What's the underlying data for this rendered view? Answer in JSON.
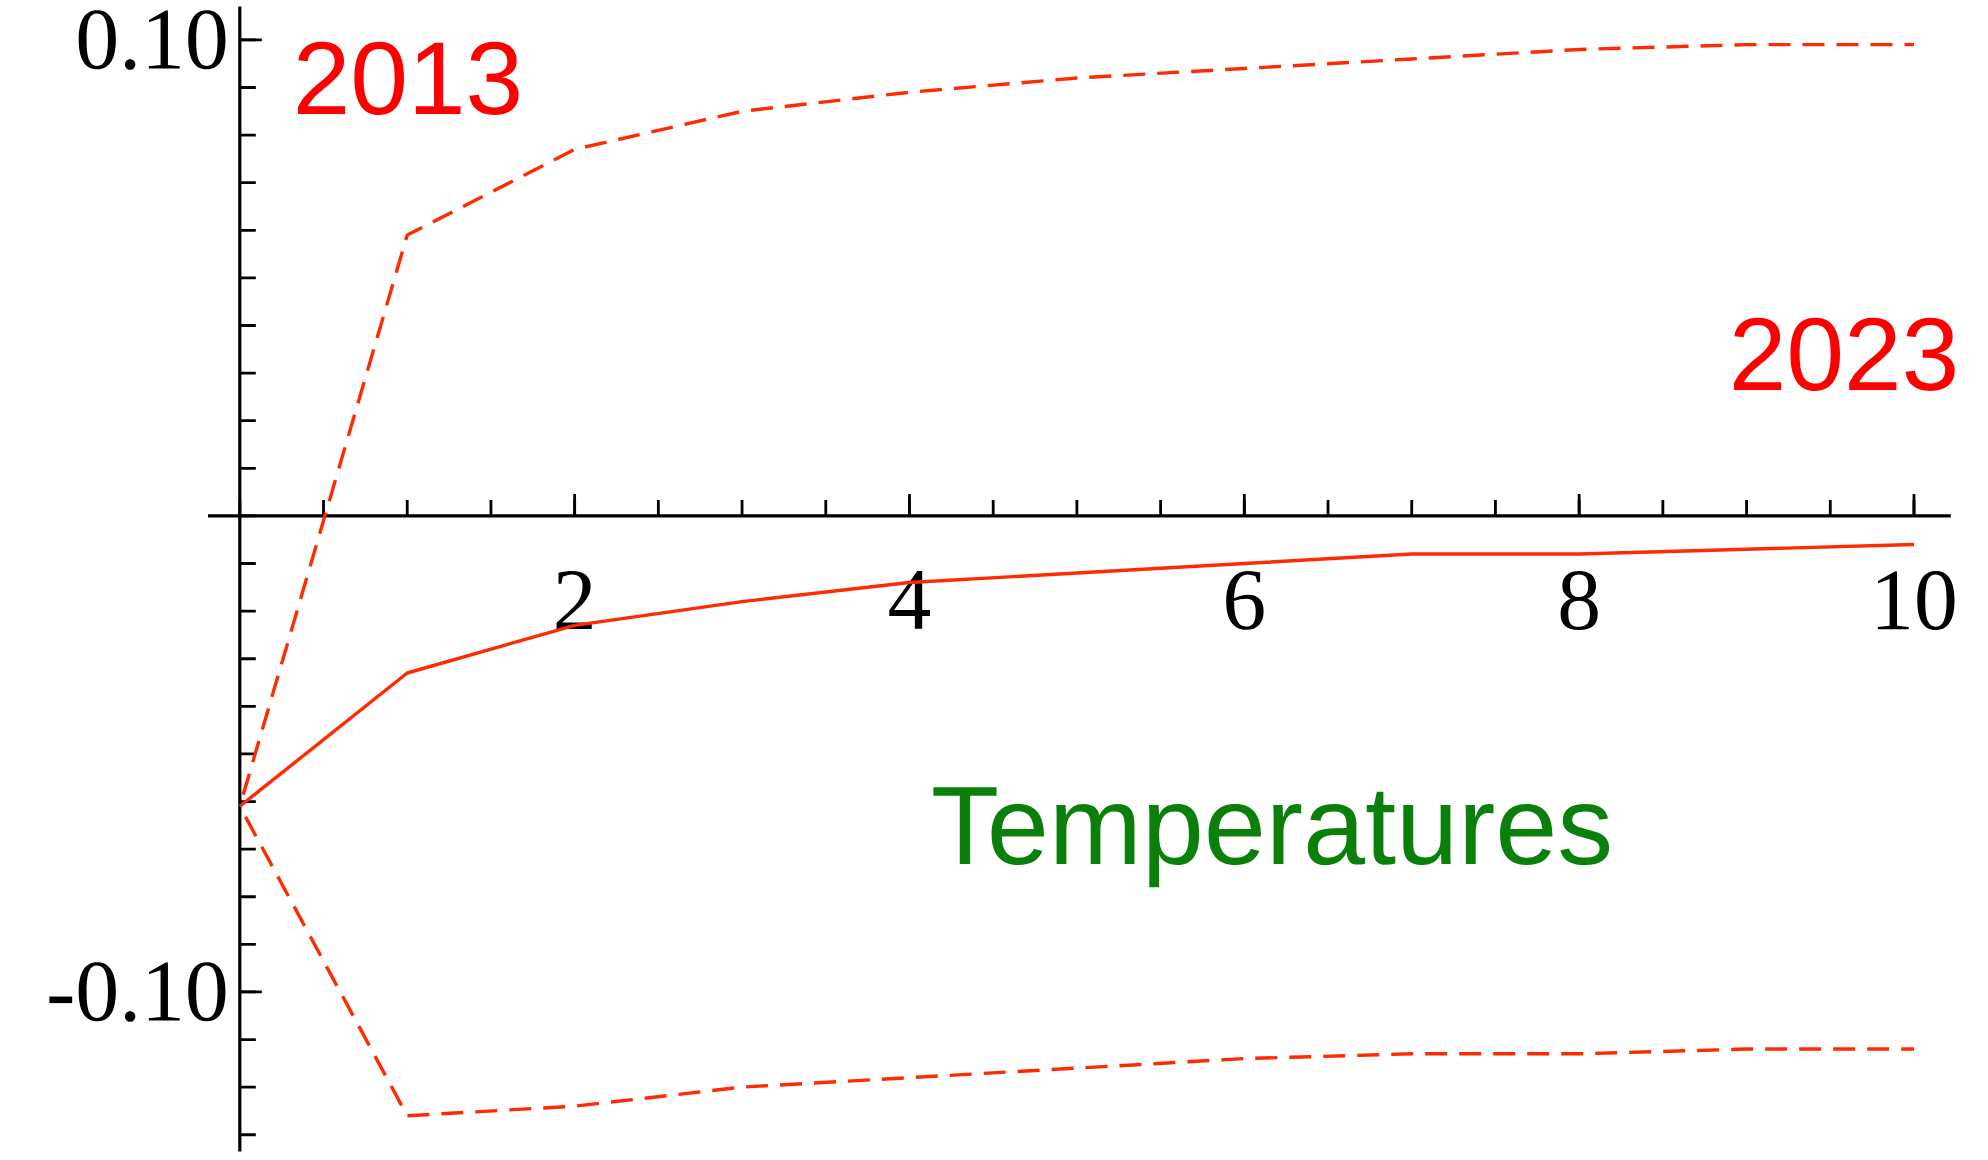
{
  "chart_data": {
    "type": "line",
    "x": [
      0,
      1,
      2,
      3,
      4,
      5,
      6,
      7,
      8,
      9,
      10
    ],
    "xlim": [
      -0.19,
      10.22
    ],
    "ylim": [
      -0.1335,
      0.107
    ],
    "xticks": [
      2,
      4,
      6,
      8,
      10
    ],
    "yticks": [
      {
        "value": -0.1,
        "label": "-0.10"
      },
      {
        "value": 0.1,
        "label": "0.10"
      }
    ],
    "marker": "none",
    "series": [
      {
        "color": "#ff2a00",
        "line_style": "solid",
        "values": [
          -0.061,
          -0.033,
          -0.023,
          -0.018,
          -0.014,
          -0.012,
          -0.01,
          -0.008,
          -0.008,
          -0.007,
          -0.006
        ]
      },
      {
        "color": "#ff2a00",
        "line_style": "dashed",
        "values": [
          -0.061,
          0.059,
          0.077,
          0.085,
          0.089,
          0.092,
          0.094,
          0.096,
          0.098,
          0.099,
          0.099
        ]
      },
      {
        "color": "#ff2a00",
        "line_style": "dashed",
        "values": [
          -0.061,
          -0.126,
          -0.124,
          -0.12,
          -0.118,
          -0.116,
          -0.114,
          -0.113,
          -0.113,
          -0.112,
          -0.112
        ]
      }
    ],
    "annotations": [
      "2013",
      "2023",
      "Temperatures"
    ]
  }
}
